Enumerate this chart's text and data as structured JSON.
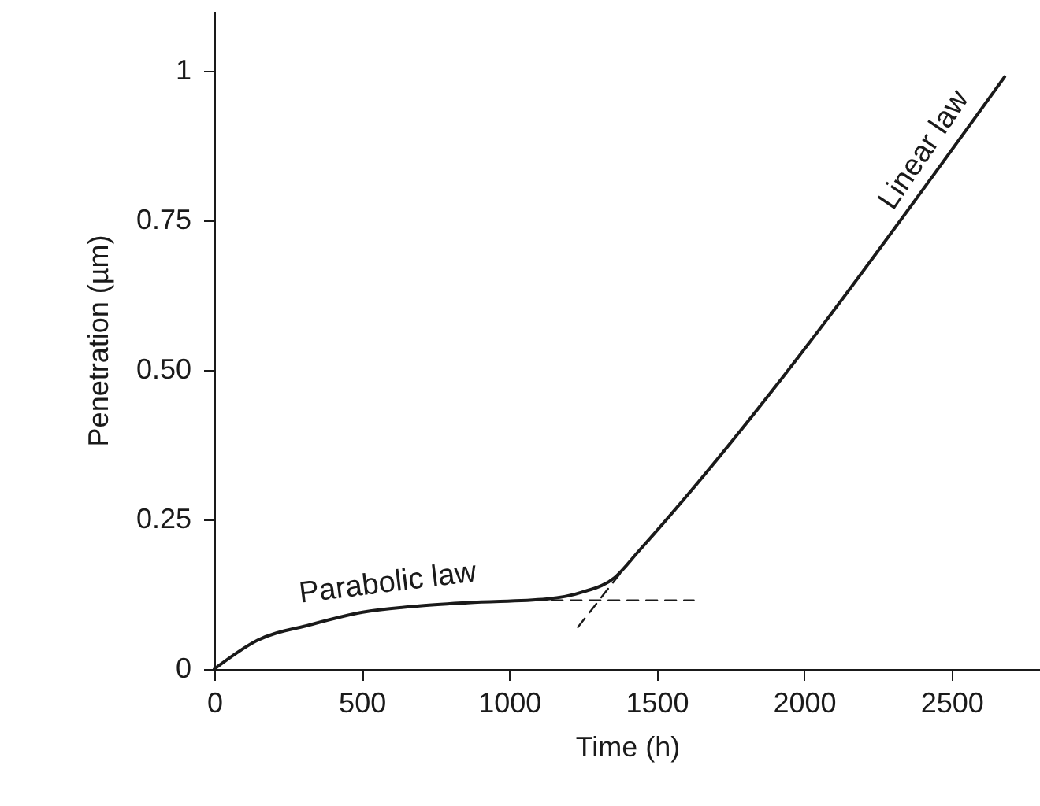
{
  "chart_data": {
    "type": "line",
    "xlabel": "Time (h)",
    "ylabel": "Penetration (µm)",
    "xlim": [
      0,
      2800
    ],
    "ylim": [
      0,
      1.1
    ],
    "xticks": [
      0,
      500,
      1000,
      1500,
      2000,
      2500
    ],
    "yticks": [
      0,
      0.25,
      {
        "value": 0.5,
        "label": "0.50"
      },
      0.75,
      1
    ],
    "grid": false,
    "series": [
      {
        "color": "#1a1a1a",
        "line_style": "solid",
        "x": [
          0,
          146,
          325,
          503,
          681,
          859,
          1127,
          1251,
          1358,
          1439,
          2680
        ],
        "values": [
          0,
          0.048,
          0.074,
          0.095,
          0.105,
          0.111,
          0.117,
          0.129,
          0.153,
          0.197,
          0.99
        ]
      },
      {
        "color": "#1a1a1a",
        "line_style": "dashed",
        "x": [
          1144,
          1626
        ],
        "values": [
          0.115,
          0.115
        ]
      },
      {
        "color": "#1a1a1a",
        "line_style": "dashed",
        "x": [
          1233,
          1394
        ],
        "values": [
          0.07,
          0.171
        ]
      }
    ],
    "annotations": [
      "Parabolic law",
      "Linear law"
    ]
  }
}
